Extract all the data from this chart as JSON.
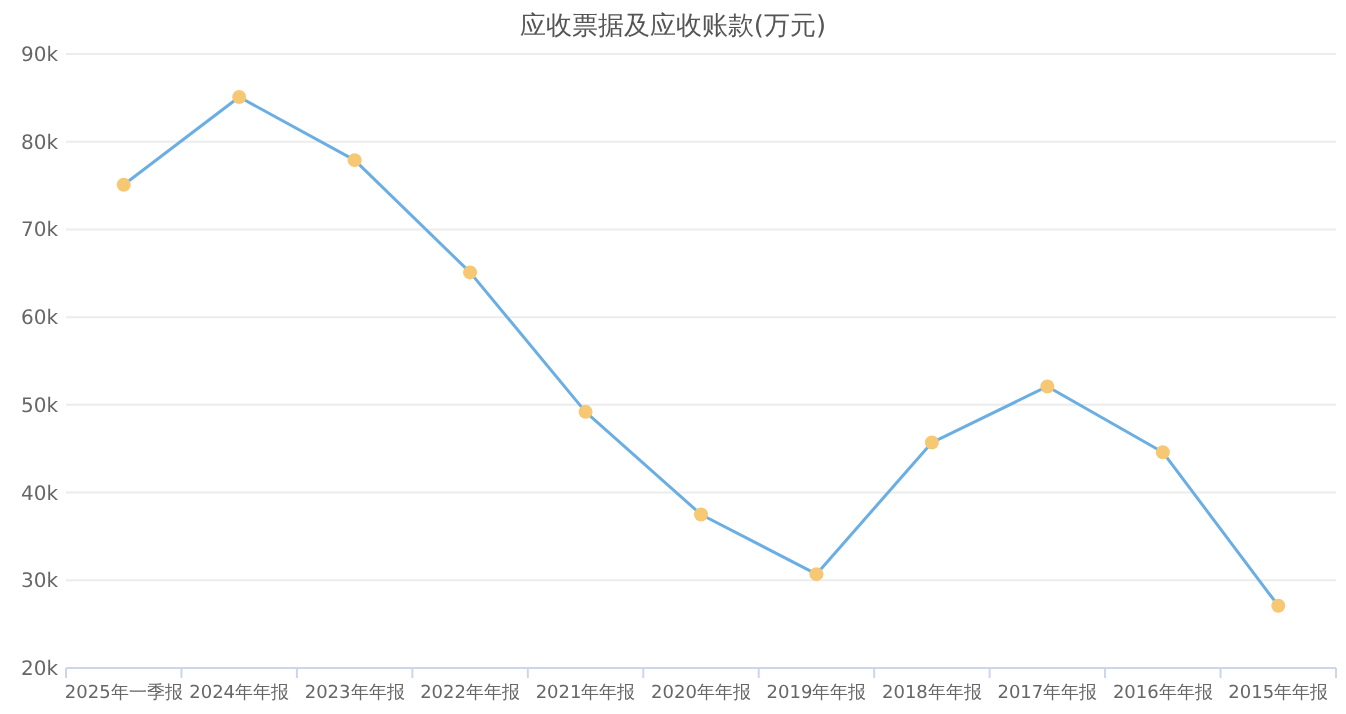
{
  "chart_data": {
    "type": "line",
    "title": "应收票据及应收账款(万元)",
    "categories": [
      "2025年一季报",
      "2024年年报",
      "2023年年报",
      "2022年年报",
      "2021年年报",
      "2020年年报",
      "2019年年报",
      "2018年年报",
      "2017年年报",
      "2016年年报",
      "2015年年报"
    ],
    "series": [
      {
        "color": "#6aaee3",
        "values": [
          75100,
          85100,
          77900,
          65100,
          49200,
          37500,
          30700,
          45700,
          52100,
          44600,
          27100
        ]
      }
    ],
    "ylim": [
      20000,
      90000
    ],
    "yticks": [
      {
        "value": 20000,
        "label": "20k"
      },
      {
        "value": 30000,
        "label": "30k"
      },
      {
        "value": 40000,
        "label": "40k"
      },
      {
        "value": 50000,
        "label": "50k"
      },
      {
        "value": 60000,
        "label": "60k"
      },
      {
        "value": 70000,
        "label": "70k"
      },
      {
        "value": 80000,
        "label": "80k"
      },
      {
        "value": 90000,
        "label": "90k"
      }
    ],
    "grid": "y",
    "marker": "circle",
    "line_style": "solid"
  }
}
